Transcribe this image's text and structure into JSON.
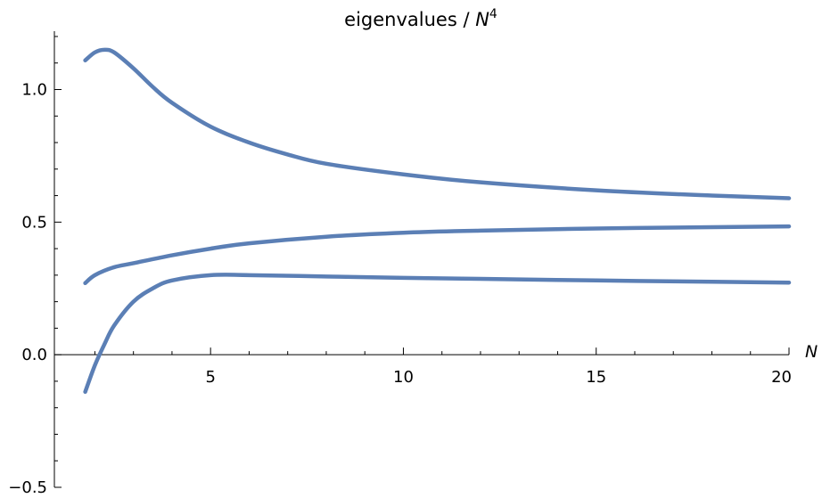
{
  "chart_data": {
    "type": "line",
    "title": "eigenvalues / ",
    "title_var": "N",
    "title_exp": "4",
    "xlabel": "N",
    "ylabel": "",
    "xlim": [
      0.95,
      20
    ],
    "ylim": [
      -0.5,
      1.22
    ],
    "x_ticks": [
      5,
      10,
      15,
      20
    ],
    "x_tick_labels": [
      "5",
      "10",
      "15",
      "20"
    ],
    "y_ticks": [
      -0.5,
      0.0,
      0.5,
      1.0
    ],
    "y_tick_labels": [
      "−0.5",
      "0.0",
      "0.5",
      "1.0"
    ],
    "grid": false,
    "legend": "none",
    "line_color": "#5b7fb5",
    "series": [
      {
        "x": [
          1.75,
          2.0,
          2.25,
          2.5,
          3.0,
          3.5,
          4.0,
          5.0,
          6.0,
          7.0,
          8.0,
          10.0,
          12.0,
          15.0,
          18.0,
          20.0
        ],
        "values": [
          1.11,
          1.14,
          1.15,
          1.14,
          1.08,
          1.01,
          0.95,
          0.86,
          0.8,
          0.755,
          0.72,
          0.68,
          0.65,
          0.62,
          0.6,
          0.59
        ]
      },
      {
        "x": [
          1.75,
          2.0,
          2.5,
          3.0,
          4.0,
          5.0,
          6.0,
          8.0,
          10.0,
          12.0,
          15.0,
          18.0,
          20.0
        ],
        "values": [
          0.27,
          0.3,
          0.33,
          0.345,
          0.375,
          0.4,
          0.42,
          0.445,
          0.46,
          0.468,
          0.476,
          0.481,
          0.484
        ]
      },
      {
        "x": [
          1.75,
          2.0,
          2.25,
          2.5,
          3.0,
          3.5,
          4.0,
          5.0,
          6.0,
          8.0,
          10.0,
          12.0,
          15.0,
          18.0,
          20.0
        ],
        "values": [
          -0.14,
          -0.04,
          0.04,
          0.11,
          0.2,
          0.25,
          0.28,
          0.3,
          0.3,
          0.295,
          0.29,
          0.286,
          0.28,
          0.275,
          0.272
        ]
      }
    ]
  }
}
